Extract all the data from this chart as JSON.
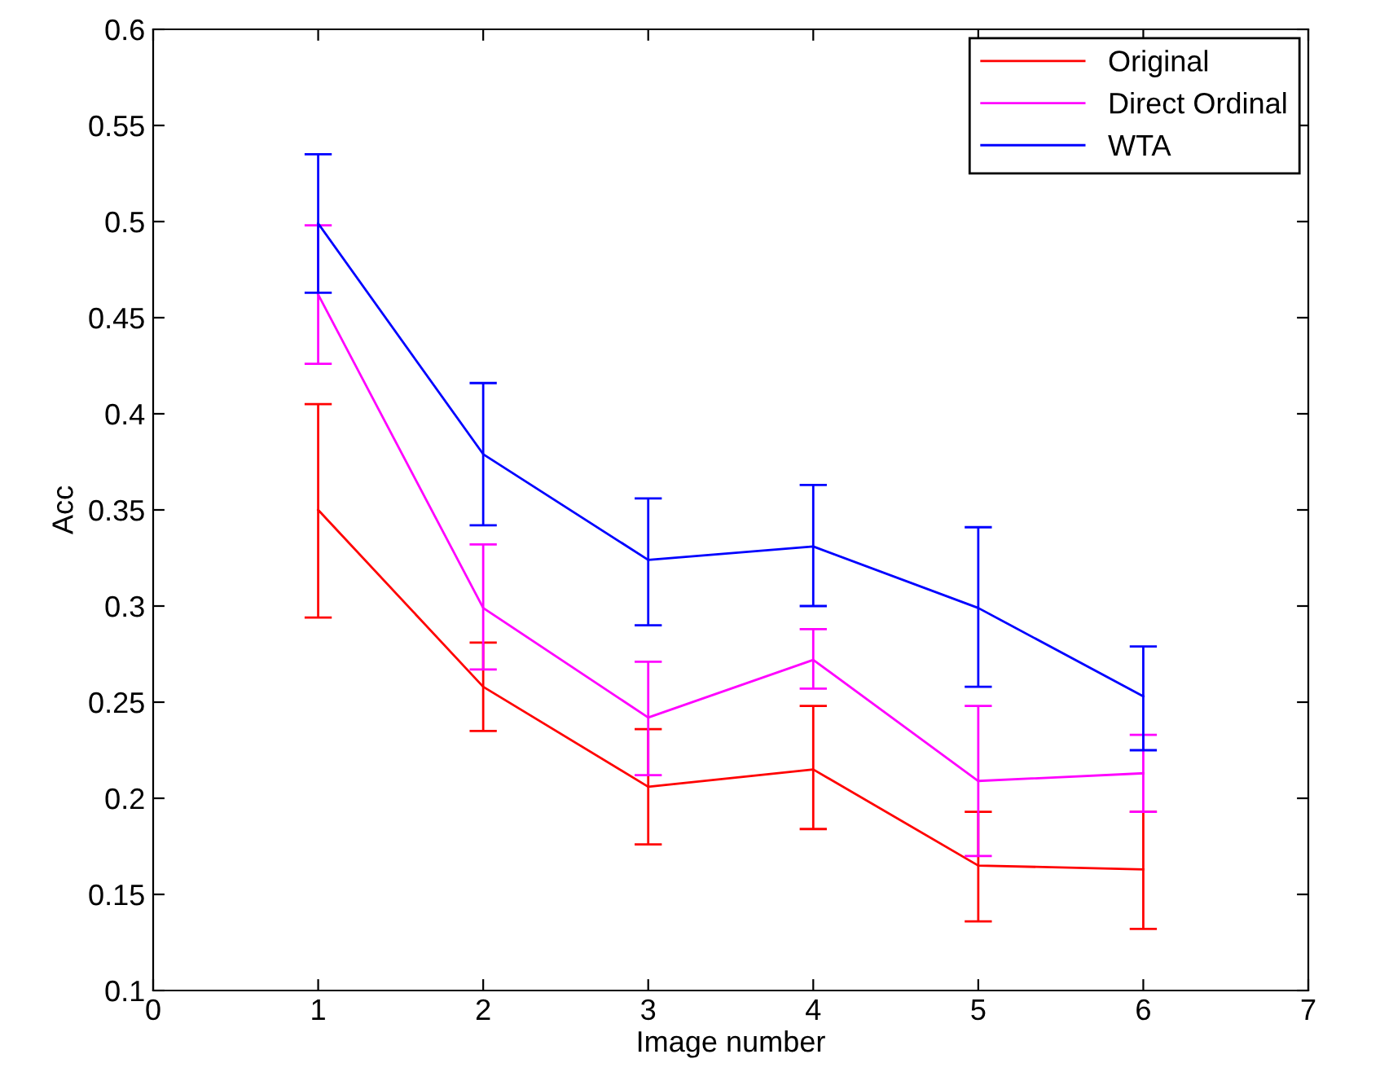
{
  "chart_data": {
    "type": "line",
    "xlabel": "Image number",
    "ylabel": "Acc",
    "x": [
      1,
      2,
      3,
      4,
      5,
      6
    ],
    "xlim": [
      0,
      7
    ],
    "xticks": [
      0,
      1,
      2,
      3,
      4,
      5,
      6,
      7
    ],
    "ylim": [
      0.1,
      0.6
    ],
    "yticks": [
      0.1,
      0.15,
      0.2,
      0.25,
      0.3,
      0.35,
      0.4,
      0.45,
      0.5,
      0.55,
      0.6
    ],
    "grid": false,
    "legend": "top right",
    "marker": "none",
    "line_style": "solid",
    "series": [
      {
        "name": "Original",
        "color": "#ff0000",
        "values": [
          0.35,
          0.258,
          0.206,
          0.215,
          0.165,
          0.163
        ],
        "errors": [
          [
            0.294,
            0.405
          ],
          [
            0.235,
            0.281
          ],
          [
            0.176,
            0.236
          ],
          [
            0.184,
            0.248
          ],
          [
            0.136,
            0.193
          ],
          [
            0.132,
            0.193
          ]
        ]
      },
      {
        "name": "Direct Ordinal",
        "color": "#ff00ff",
        "values": [
          0.462,
          0.299,
          0.242,
          0.272,
          0.209,
          0.213
        ],
        "errors": [
          [
            0.426,
            0.498
          ],
          [
            0.267,
            0.332
          ],
          [
            0.212,
            0.271
          ],
          [
            0.257,
            0.288
          ],
          [
            0.17,
            0.248
          ],
          [
            0.193,
            0.233
          ]
        ]
      },
      {
        "name": "WTA",
        "color": "#0000ff",
        "values": [
          0.499,
          0.379,
          0.324,
          0.331,
          0.299,
          0.253
        ],
        "errors": [
          [
            0.463,
            0.535
          ],
          [
            0.342,
            0.416
          ],
          [
            0.29,
            0.356
          ],
          [
            0.3,
            0.363
          ],
          [
            0.258,
            0.341
          ],
          [
            0.225,
            0.279
          ]
        ]
      }
    ]
  }
}
